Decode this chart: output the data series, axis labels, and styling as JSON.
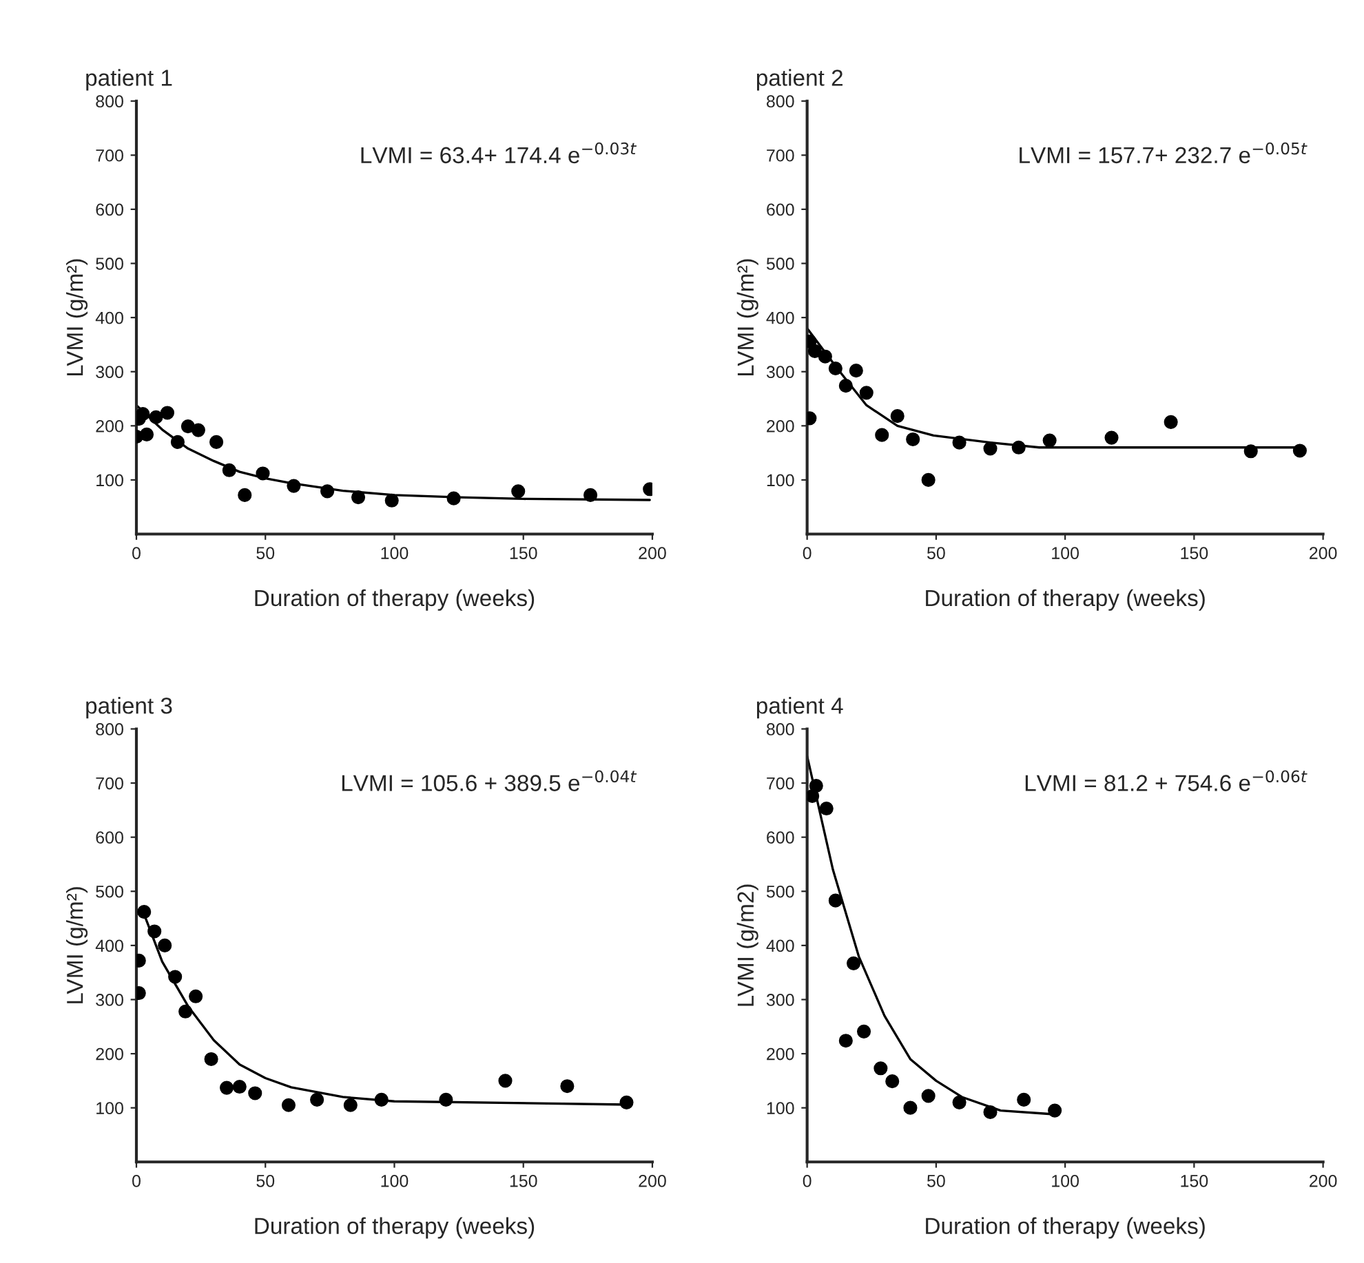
{
  "chart_data": [
    {
      "type": "scatter",
      "title": "patient 1",
      "xlabel": "Duration of therapy (weeks)",
      "ylabel": "LVMI (g/m²)",
      "annotations": [
        "LVMI = 63.4+ 174.4 e$^{−0.03t}$"
      ],
      "xlim": [
        0,
        200
      ],
      "ylim": [
        0,
        800
      ],
      "xticks": [
        0,
        50,
        100,
        150,
        200
      ],
      "yticks": [
        100,
        200,
        300,
        400,
        500,
        600,
        700,
        800
      ],
      "grid": false,
      "series": [
        {
          "marker": "circle",
          "color": "#000000",
          "x": [
            0,
            1,
            2.5,
            4,
            7.6,
            12,
            16,
            20,
            24,
            31,
            36,
            42,
            49,
            61,
            74,
            86,
            99,
            123,
            148,
            176,
            199
          ],
          "values": [
            180,
            213,
            222,
            184,
            216,
            224,
            170,
            199,
            192,
            170,
            118,
            72,
            112,
            89,
            79,
            68,
            62,
            66,
            79,
            72,
            83
          ]
        },
        {
          "type": "line",
          "marker": "none",
          "line_style": "solid",
          "color": "#000000",
          "x": [
            0,
            10,
            20,
            30,
            40,
            50,
            60,
            80,
            100,
            125,
            150,
            199
          ],
          "values": [
            238,
            193,
            158,
            135,
            115,
            103,
            94,
            80,
            72,
            68,
            65,
            63
          ]
        }
      ]
    },
    {
      "type": "scatter",
      "title": "patient 2",
      "xlabel": "Duration of therapy (weeks)",
      "ylabel": "LVMI (g/m²)",
      "annotations": [
        "LVMI = 157.7+ 232.7 e$^{−0.05t}$"
      ],
      "xlim": [
        0,
        200
      ],
      "ylim": [
        0,
        800
      ],
      "xticks": [
        0,
        50,
        100,
        150,
        200
      ],
      "yticks": [
        100,
        200,
        300,
        400,
        500,
        600,
        700,
        800
      ],
      "grid": false,
      "series": [
        {
          "marker": "circle",
          "color": "#000000",
          "x": [
            1,
            1,
            3,
            7,
            11,
            15,
            19,
            23,
            29,
            35,
            41,
            47,
            59,
            71,
            82,
            94,
            118,
            141,
            172,
            191
          ],
          "values": [
            356,
            214,
            338,
            328,
            306,
            274,
            302,
            261,
            183,
            218,
            175,
            100,
            169,
            158,
            160,
            173,
            178,
            207,
            153,
            154
          ]
        },
        {
          "type": "line",
          "marker": "none",
          "line_style": "solid",
          "color": "#000000",
          "x": [
            0,
            12,
            23,
            35,
            49,
            71,
            90,
            120,
            160,
            192
          ],
          "values": [
            380,
            304,
            238,
            200,
            182,
            169,
            160,
            160,
            160,
            160
          ]
        }
      ]
    },
    {
      "type": "scatter",
      "title": "patient 3",
      "xlabel": "Duration of therapy (weeks)",
      "ylabel": "LVMI (g/m²)",
      "annotations": [
        "LVMI = 105.6 + 389.5 e$^{−0.04t}$"
      ],
      "xlim": [
        0,
        200
      ],
      "ylim": [
        0,
        800
      ],
      "xticks": [
        0,
        50,
        100,
        150,
        200
      ],
      "yticks": [
        100,
        200,
        300,
        400,
        500,
        600,
        700,
        800
      ],
      "grid": false,
      "series": [
        {
          "marker": "circle",
          "color": "#000000",
          "x": [
            1,
            1,
            3,
            7,
            11,
            15,
            19,
            23,
            29,
            35,
            40,
            46,
            59,
            70,
            83,
            95,
            120,
            143,
            167,
            190
          ],
          "values": [
            372,
            312,
            462,
            426,
            400,
            342,
            278,
            306,
            190,
            137,
            139,
            127,
            105,
            115,
            105,
            115,
            115,
            150,
            140,
            110
          ]
        },
        {
          "type": "line",
          "marker": "none",
          "line_style": "solid",
          "color": "#000000",
          "x": [
            2,
            10,
            20,
            30,
            40,
            50,
            60,
            80,
            100,
            190
          ],
          "values": [
            470,
            370,
            288,
            225,
            180,
            155,
            138,
            120,
            112,
            106
          ]
        }
      ]
    },
    {
      "type": "scatter",
      "title": "patient 4",
      "xlabel": "Duration of therapy (weeks)",
      "ylabel": "LVMI (g/m2)",
      "annotations": [
        "LVMI = 81.2 + 754.6 e$^{−0.06t}$"
      ],
      "xlim": [
        0,
        200
      ],
      "ylim": [
        0,
        800
      ],
      "xticks": [
        0,
        50,
        100,
        150,
        200
      ],
      "yticks": [
        100,
        200,
        300,
        400,
        500,
        600,
        700,
        800
      ],
      "grid": false,
      "series": [
        {
          "marker": "circle",
          "color": "#000000",
          "x": [
            2,
            3.5,
            7.5,
            11,
            18,
            15,
            22,
            28.5,
            33,
            40,
            47,
            59,
            71,
            84,
            96
          ],
          "values": [
            676,
            695,
            653,
            483,
            367,
            224,
            241,
            173,
            149,
            100,
            122,
            110,
            92,
            115,
            95
          ]
        },
        {
          "type": "line",
          "marker": "none",
          "line_style": "solid",
          "color": "#000000",
          "x": [
            0,
            10,
            20,
            30,
            40,
            50,
            60,
            75,
            96
          ],
          "values": [
            750,
            540,
            380,
            270,
            190,
            150,
            120,
            95,
            88
          ]
        }
      ]
    }
  ]
}
